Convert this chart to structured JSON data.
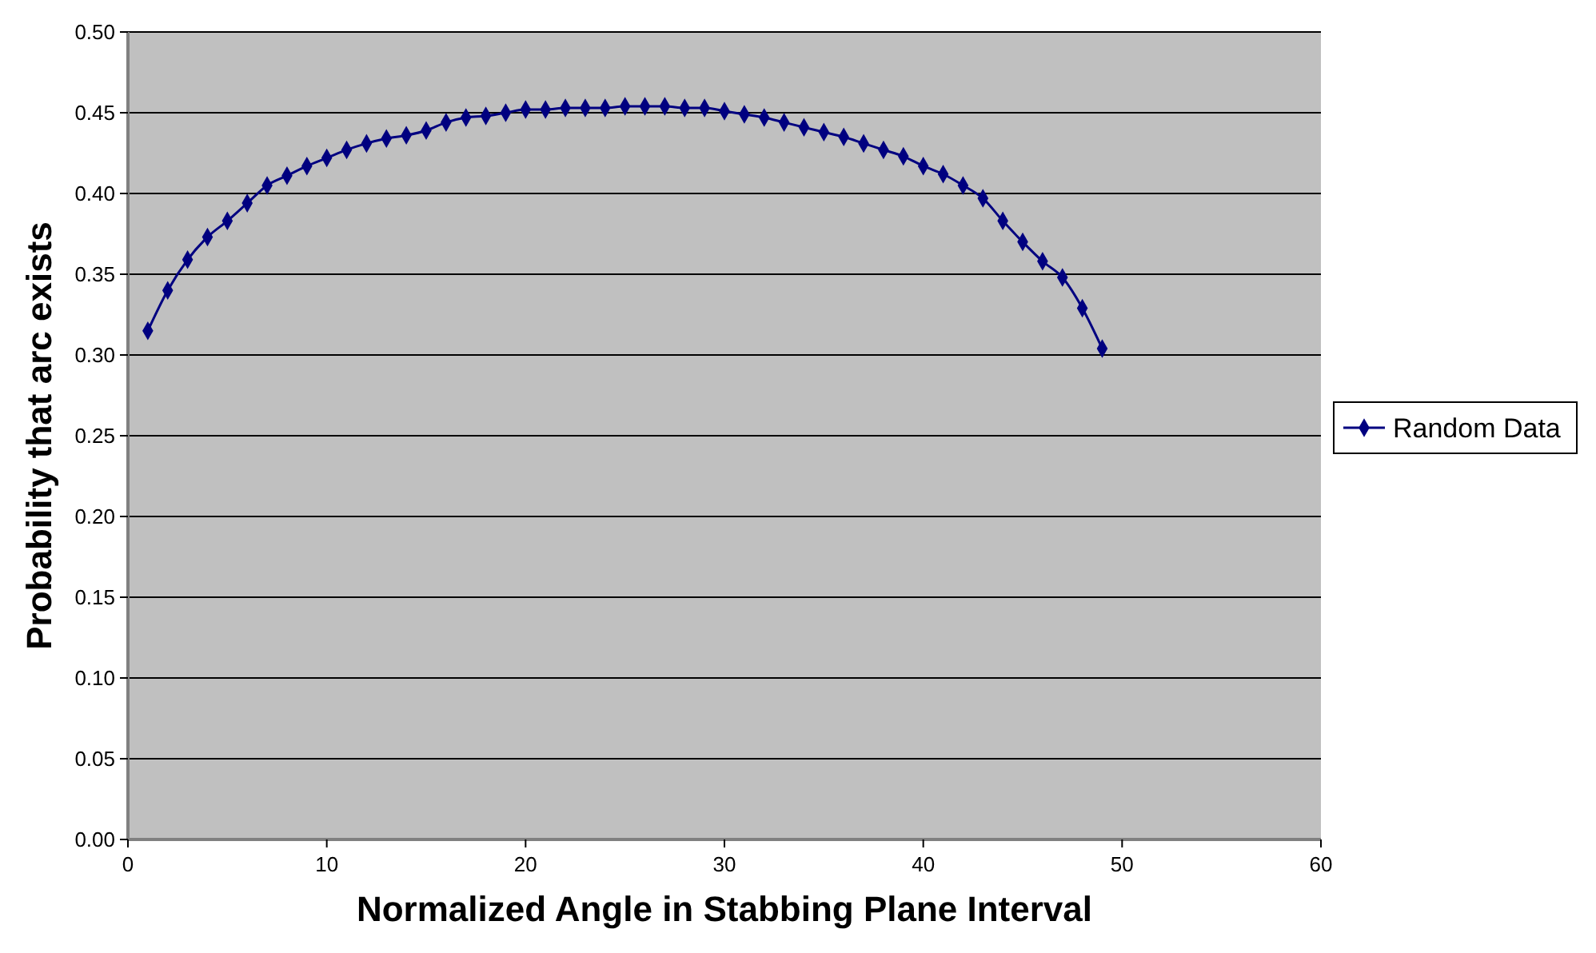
{
  "chart_data": {
    "type": "line",
    "xlabel": "Normalized  Angle in Stabbing Plane Interval",
    "ylabel": "Probability that arc exists",
    "x": [
      1,
      2,
      3,
      4,
      5,
      6,
      7,
      8,
      9,
      10,
      11,
      12,
      13,
      14,
      15,
      16,
      17,
      18,
      19,
      20,
      21,
      22,
      23,
      24,
      25,
      26,
      27,
      28,
      29,
      30,
      31,
      32,
      33,
      34,
      35,
      36,
      37,
      38,
      39,
      40,
      41,
      42,
      43,
      44,
      45,
      46,
      47,
      48,
      49
    ],
    "series": [
      {
        "name": "Random Data",
        "color": "#000080",
        "values": [
          0.315,
          0.34,
          0.359,
          0.373,
          0.383,
          0.394,
          0.405,
          0.411,
          0.417,
          0.422,
          0.427,
          0.431,
          0.434,
          0.436,
          0.439,
          0.444,
          0.447,
          0.448,
          0.45,
          0.452,
          0.452,
          0.453,
          0.453,
          0.453,
          0.454,
          0.454,
          0.454,
          0.453,
          0.453,
          0.451,
          0.449,
          0.447,
          0.444,
          0.441,
          0.438,
          0.435,
          0.431,
          0.427,
          0.423,
          0.417,
          0.412,
          0.405,
          0.397,
          0.383,
          0.37,
          0.358,
          0.348,
          0.329,
          0.304
        ]
      }
    ],
    "xlim": [
      0,
      60
    ],
    "xticks": [
      0,
      10,
      20,
      30,
      40,
      50,
      60
    ],
    "ylim": [
      0,
      0.5
    ],
    "yticks": [
      {
        "value": 0,
        "label": "0.00"
      },
      {
        "value": 0.05,
        "label": "0.05"
      },
      {
        "value": 0.1,
        "label": "0.10"
      },
      {
        "value": 0.15,
        "label": "0.15"
      },
      {
        "value": 0.2,
        "label": "0.20"
      },
      {
        "value": 0.25,
        "label": "0.25"
      },
      {
        "value": 0.3,
        "label": "0.30"
      },
      {
        "value": 0.35,
        "label": "0.35"
      },
      {
        "value": 0.4,
        "label": "0.40"
      },
      {
        "value": 0.45,
        "label": "0.45"
      },
      {
        "value": 0.5,
        "label": "0.50"
      }
    ],
    "grid": "y",
    "legend": "right",
    "marker": "diamond",
    "line_style": "solid"
  }
}
